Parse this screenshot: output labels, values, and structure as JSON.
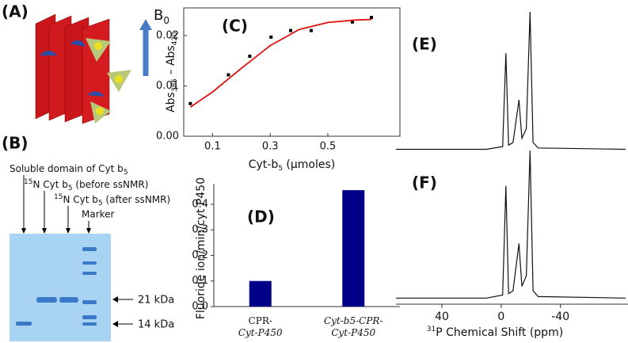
{
  "panels": {
    "a": {
      "label": "(A)",
      "field": "B",
      "field_sub": "0"
    },
    "b": {
      "label": "(B)",
      "lane1": [
        "Soluble domain of Cyt b",
        "5"
      ],
      "lane2": [
        "15",
        "N Cyt b",
        "5",
        " (before ssNMR)"
      ],
      "lane3": [
        "15",
        "N Cyt b",
        "5",
        " (after ssNMR)"
      ],
      "lane4": "Marker",
      "mw1": "21 kDa",
      "mw2": "14 kDa"
    }
  },
  "chart_data": [
    {
      "type": "scatter",
      "label": "(C)",
      "ylabel": [
        "Abs",
        "385",
        " – Abs",
        "420"
      ],
      "xlabel": [
        "Cyt-b",
        "5",
        " (μmoles)"
      ],
      "xlim": [
        0,
        0.75
      ],
      "xticks": [
        0.1,
        0.3,
        0.5
      ],
      "ylim": [
        0,
        0.0255
      ],
      "yticks": [
        {
          "value": 0,
          "label": "0.00"
        },
        0.01,
        0.02
      ],
      "series": [
        {
          "type": "scatter",
          "color": "#000000",
          "x": [
            0.023,
            0.155,
            0.229,
            0.303,
            0.371,
            0.442,
            0.585,
            0.651
          ],
          "values": [
            0.0065,
            0.0122,
            0.0159,
            0.0197,
            0.021,
            0.021,
            0.0227,
            0.0236
          ]
        },
        {
          "type": "line",
          "color": "#e01010",
          "x": [
            0.023,
            0.1,
            0.2,
            0.3,
            0.4,
            0.5,
            0.6,
            0.651
          ],
          "values": [
            0.0058,
            0.0088,
            0.0135,
            0.018,
            0.0212,
            0.0226,
            0.0231,
            0.0232
          ]
        }
      ]
    },
    {
      "type": "bar",
      "label": "(D)",
      "ylabel": "Fluoride ion/min/cyt P450",
      "categories": [
        [
          "CPR-",
          "Cyt-P450"
        ],
        [
          "Cyt-b5-CPR-",
          "Cyt-P450"
        ]
      ],
      "values": [
        0.1,
        0.455
      ],
      "color": "#000088",
      "ylim": [
        0,
        0.48
      ],
      "yticks": [
        {
          "value": 0,
          "label": "0.0"
        },
        0.1,
        0.2,
        0.3,
        0.4
      ]
    },
    {
      "type": "line",
      "label": "(E)",
      "color": "#111111",
      "xlim": [
        71,
        -84
      ],
      "ylim": [
        -0.02,
        1.0
      ],
      "x": [
        71,
        10,
        -1,
        -3.2,
        -5,
        -8,
        -12,
        -14,
        -17,
        -19.5,
        -21.5,
        -25,
        -84
      ],
      "values": [
        0,
        0,
        0.02,
        0.7,
        0.03,
        0.05,
        0.36,
        0.08,
        0.15,
        1.0,
        0.05,
        0.01,
        0
      ]
    },
    {
      "type": "line",
      "label": "(F)",
      "color": "#111111",
      "xlim": [
        71,
        -84
      ],
      "ylim": [
        -0.02,
        1.0
      ],
      "xlabel": [
        "31",
        "P Chemical Shift (ppm)"
      ],
      "xticks": [
        40,
        0,
        -40
      ],
      "x": [
        71,
        10,
        -1,
        -3.2,
        -5,
        -8,
        -12,
        -14,
        -17,
        -19.5,
        -21.5,
        -25,
        -84
      ],
      "values": [
        0,
        0,
        0.02,
        0.76,
        0.03,
        0.05,
        0.37,
        0.08,
        0.15,
        1.0,
        0.05,
        0.01,
        0
      ]
    }
  ]
}
